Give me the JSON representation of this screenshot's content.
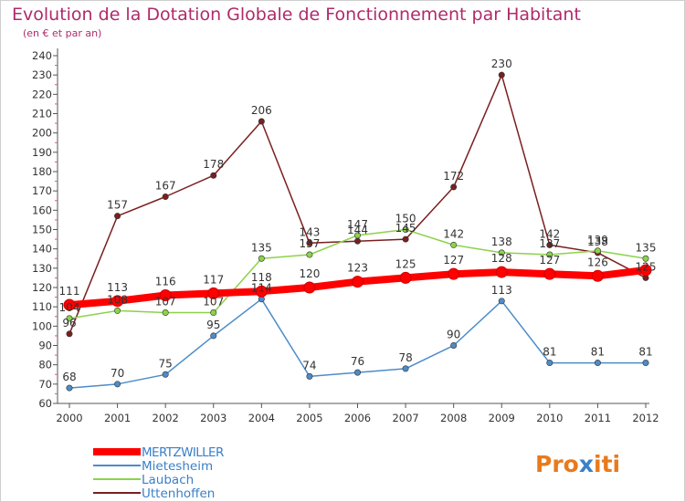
{
  "title": "Evolution de la Dotation Globale de Fonctionnement par Habitant",
  "subtitle": "(en € et par an)",
  "colors": {
    "title": "#b02a6b",
    "axis": "#555555",
    "grid": "#e2e2e2",
    "label": "#333333",
    "legend_text": "#3a7fc8",
    "logo_primary": "#e87a1d",
    "logo_accent": "#3a7fc8"
  },
  "logo": {
    "text": "Proxiti"
  },
  "chart_data": {
    "type": "line",
    "x": [
      2000,
      2001,
      2002,
      2003,
      2004,
      2005,
      2006,
      2007,
      2008,
      2009,
      2010,
      2011,
      2012
    ],
    "ylim": [
      60,
      240
    ],
    "yticks": [
      60,
      70,
      80,
      90,
      100,
      110,
      120,
      130,
      140,
      150,
      160,
      170,
      180,
      190,
      200,
      210,
      220,
      230,
      240
    ],
    "grid": false,
    "legend_position": "bottom-left",
    "series": [
      {
        "name": "MERTZWILLER",
        "color": "#ff0000",
        "width": 8,
        "marker": 6,
        "values": [
          111,
          113,
          116,
          117,
          118,
          120,
          123,
          125,
          127,
          128,
          127,
          126,
          129
        ],
        "labels": [
          "111",
          "113",
          "116",
          "117",
          "118",
          "120",
          "123",
          "125",
          "127",
          "128",
          "127",
          "126",
          ""
        ]
      },
      {
        "name": "Mietesheim",
        "color": "#4c8cc8",
        "width": 1.5,
        "marker": 3.2,
        "values": [
          68,
          70,
          75,
          95,
          114,
          74,
          76,
          78,
          90,
          113,
          81,
          81,
          81
        ],
        "labels": [
          "68",
          "70",
          "75",
          "95",
          "114",
          "74",
          "76",
          "78",
          "90",
          "113",
          "81",
          "81",
          "81"
        ]
      },
      {
        "name": "Laubach",
        "color": "#8cd24a",
        "width": 1.5,
        "marker": 3.2,
        "values": [
          104,
          108,
          107,
          107,
          135,
          137,
          147,
          150,
          142,
          138,
          137,
          139,
          135
        ],
        "labels": [
          "104",
          "108",
          "107",
          "107",
          "135",
          "137",
          "147",
          "150",
          "142",
          "138",
          "137",
          "139",
          "135"
        ]
      },
      {
        "name": "Uttenhoffen",
        "color": "#7a1f1f",
        "width": 1.5,
        "marker": 3.2,
        "values": [
          96,
          157,
          167,
          178,
          206,
          143,
          144,
          145,
          172,
          230,
          142,
          138,
          125
        ],
        "labels": [
          "96",
          "157",
          "167",
          "178",
          "206",
          "143",
          "144",
          "145",
          "172",
          "230",
          "142",
          "138",
          "125"
        ]
      }
    ]
  }
}
